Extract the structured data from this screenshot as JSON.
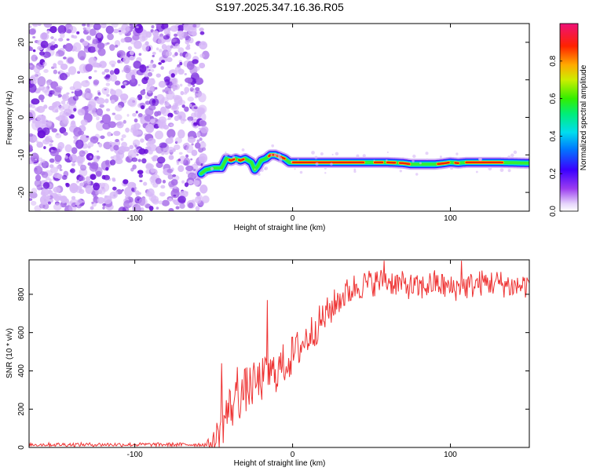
{
  "title": "S197.2025.347.16.36.R05",
  "colors": {
    "noise_light": "#d7b8f7",
    "noise_mid": "#a56ae8",
    "noise_dark": "#6a12d9",
    "snr_line": "#ee3333",
    "frame": "#000000"
  },
  "chart_data": [
    {
      "type": "heatmap",
      "name": "spectrogram",
      "xlabel": "Height of straight line (km)",
      "ylabel": "Frequency (Hz)",
      "xlim": [
        -167,
        150
      ],
      "ylim": [
        -25,
        25
      ],
      "x_ticks": [
        -100,
        0,
        100
      ],
      "x_tick_labels": [
        "-100",
        "0",
        "100"
      ],
      "y_ticks": [
        -20,
        -10,
        0,
        10,
        20
      ],
      "y_tick_labels": [
        "-20",
        "-10",
        "0",
        "10",
        "20"
      ],
      "noise_region_x": [
        -167,
        -57
      ],
      "signal_track": {
        "x": [
          -58,
          -55,
          -50,
          -45,
          -42,
          -39,
          -36,
          -33,
          -30,
          -26,
          -24,
          -22,
          -20,
          -17,
          -14,
          -11,
          -8,
          -5,
          -2,
          0,
          5,
          20,
          40,
          50,
          60,
          70,
          75,
          80,
          90,
          95,
          100,
          105,
          110,
          130,
          150
        ],
        "y": [
          -15,
          -14,
          -13.5,
          -13.5,
          -11,
          -11.5,
          -11,
          -11.5,
          -11,
          -12,
          -14,
          -13,
          -11.5,
          -11,
          -10,
          -10,
          -10.5,
          -11,
          -12,
          -12,
          -12,
          -12,
          -12,
          -12,
          -12,
          -12.2,
          -12.5,
          -12.5,
          -12.5,
          -12.3,
          -12,
          -12.2,
          -12,
          -12,
          -12.2
        ],
        "core_segments": [
          [
            -40,
            -37
          ],
          [
            -34,
            -31
          ],
          [
            -15,
            -5
          ],
          [
            0,
            45
          ],
          [
            52,
            57
          ],
          [
            60,
            65
          ],
          [
            68,
            74
          ],
          [
            92,
            99
          ],
          [
            103,
            105
          ],
          [
            110,
            133
          ]
        ]
      },
      "colorbar": {
        "label": "Normalized spectral amplitude",
        "ticks": [
          0.0,
          0.2,
          0.4,
          0.6,
          0.8
        ],
        "tick_labels": [
          "0.0",
          "0.2",
          "0.4",
          "0.6",
          "0.8"
        ],
        "range": [
          0,
          1
        ]
      }
    },
    {
      "type": "line",
      "name": "snr",
      "xlabel": "Height of straight line (km)",
      "ylabel": "SNR (10 * v/v)",
      "xlim": [
        -167,
        150
      ],
      "ylim": [
        0,
        980
      ],
      "x_ticks": [
        -100,
        0,
        100
      ],
      "x_tick_labels": [
        "-100",
        "0",
        "100"
      ],
      "y_ticks": [
        0,
        200,
        400,
        600,
        800
      ],
      "y_tick_labels": [
        "0",
        "200",
        "400",
        "600",
        "800"
      ],
      "trend": {
        "x": [
          -167,
          -55,
          -49,
          -46,
          -40,
          -30,
          -20,
          -10,
          0,
          10,
          20,
          30,
          40,
          50,
          60,
          70,
          80,
          90,
          100,
          110,
          120,
          130,
          140,
          150
        ],
        "y": [
          15,
          15,
          20,
          120,
          200,
          300,
          350,
          400,
          480,
          580,
          680,
          780,
          840,
          860,
          870,
          850,
          830,
          860,
          830,
          840,
          860,
          860,
          840,
          850
        ]
      },
      "noise_amplitude": {
        "x": [
          -167,
          -55,
          -45,
          -30,
          0,
          30,
          60,
          150
        ],
        "y": [
          10,
          10,
          130,
          120,
          110,
          80,
          70,
          70
        ]
      },
      "spikes": [
        {
          "x": -45,
          "y": 440
        },
        {
          "x": -35,
          "y": 420
        },
        {
          "x": -16,
          "y": 770
        },
        {
          "x": 58,
          "y": 975
        },
        {
          "x": 107,
          "y": 975
        }
      ]
    }
  ]
}
